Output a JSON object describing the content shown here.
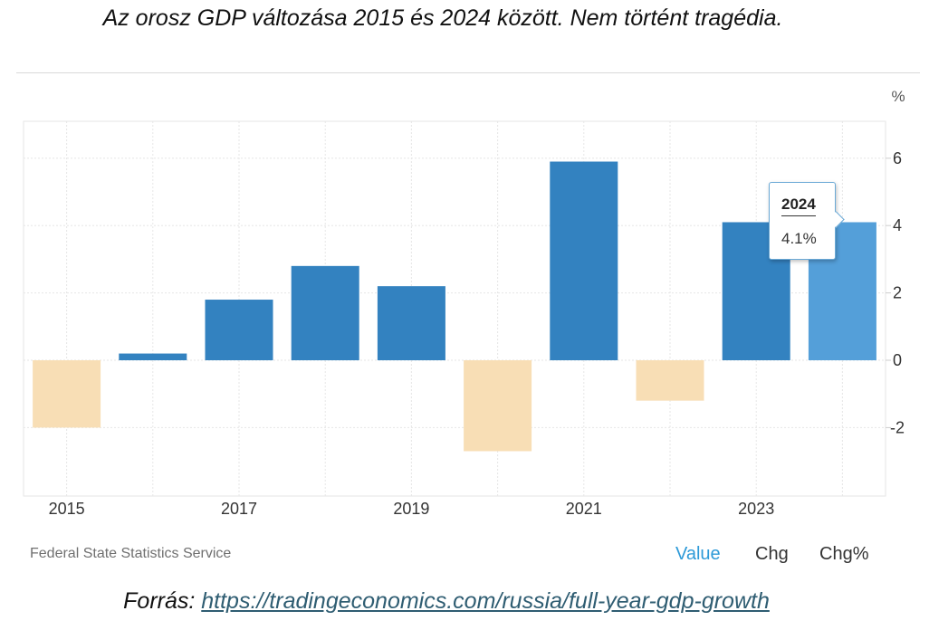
{
  "header": {
    "caption": "Az orosz GDP változása 2015 és 2024 között. Nem történt tragédia."
  },
  "footer": {
    "source": "Federal State Statistics Service",
    "tabs": [
      {
        "label": "Value"
      },
      {
        "label": "Chg"
      },
      {
        "label": "Chg%"
      }
    ],
    "source_prefix": "Forrás: ",
    "source_link": "https://tradingeconomics.com/russia/full-year-gdp-growth"
  },
  "tooltip": {
    "year": "2024",
    "value": "4.1%"
  },
  "colors": {
    "positive": "#3382c0",
    "highlight": "#549fd9",
    "negative": "#f8deb5",
    "grid": "#e6e6e6"
  },
  "chart_data": {
    "type": "bar",
    "categories": [
      "2015",
      "2016",
      "2017",
      "2018",
      "2019",
      "2020",
      "2021",
      "2022",
      "2023",
      "2024"
    ],
    "values": [
      -2.0,
      0.2,
      1.8,
      2.8,
      2.2,
      -2.7,
      5.9,
      -1.2,
      4.1,
      4.1
    ],
    "x_tick_labels": [
      "2015",
      "2017",
      "2019",
      "2021",
      "2023"
    ],
    "y_ticks": [
      -2,
      0,
      2,
      4,
      6
    ],
    "y_unit": "%",
    "ylim": [
      -4,
      7
    ]
  }
}
